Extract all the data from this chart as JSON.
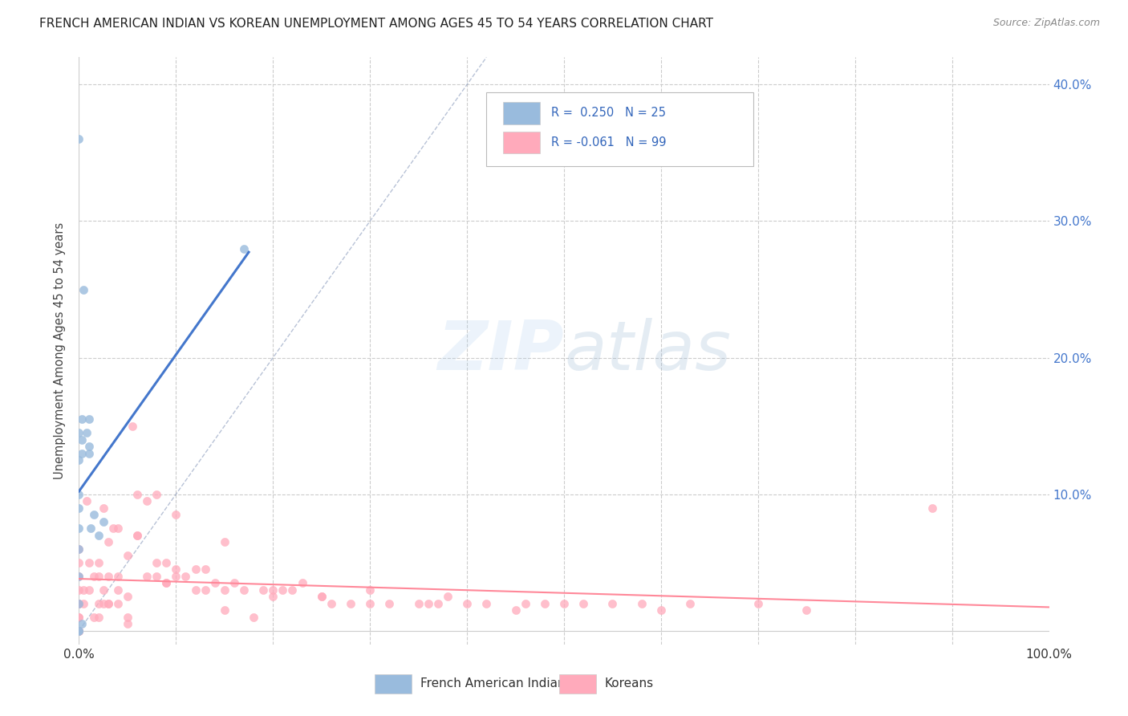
{
  "title": "FRENCH AMERICAN INDIAN VS KOREAN UNEMPLOYMENT AMONG AGES 45 TO 54 YEARS CORRELATION CHART",
  "source": "Source: ZipAtlas.com",
  "ylabel": "Unemployment Among Ages 45 to 54 years",
  "xlim": [
    0,
    1.0
  ],
  "ylim": [
    -0.01,
    0.42
  ],
  "yticklabels_right": [
    "",
    "10.0%",
    "20.0%",
    "30.0%",
    "40.0%"
  ],
  "ytick_positions": [
    0.0,
    0.1,
    0.2,
    0.3,
    0.4
  ],
  "legend_label1": "French American Indians",
  "legend_label2": "Koreans",
  "color_blue": "#99BBDD",
  "color_pink": "#FFAABB",
  "color_blue_line": "#4477CC",
  "color_pink_line": "#FF8899",
  "color_diag": "#8899BB",
  "watermark_color": "#BBDDEE",
  "french_x": [
    0.0,
    0.0,
    0.0,
    0.0,
    0.0,
    0.0,
    0.0,
    0.0,
    0.0,
    0.0,
    0.0,
    0.003,
    0.003,
    0.003,
    0.003,
    0.005,
    0.008,
    0.01,
    0.01,
    0.01,
    0.012,
    0.015,
    0.02,
    0.025,
    0.17
  ],
  "french_y": [
    0.0,
    0.0,
    0.02,
    0.04,
    0.06,
    0.075,
    0.09,
    0.1,
    0.125,
    0.145,
    0.36,
    0.005,
    0.13,
    0.14,
    0.155,
    0.25,
    0.145,
    0.13,
    0.135,
    0.155,
    0.075,
    0.085,
    0.07,
    0.08,
    0.28
  ],
  "korean_x": [
    0.0,
    0.0,
    0.0,
    0.0,
    0.0,
    0.0,
    0.0,
    0.0,
    0.0,
    0.0,
    0.0,
    0.0,
    0.0,
    0.0,
    0.005,
    0.005,
    0.008,
    0.01,
    0.01,
    0.015,
    0.015,
    0.02,
    0.02,
    0.02,
    0.02,
    0.025,
    0.025,
    0.025,
    0.03,
    0.03,
    0.03,
    0.03,
    0.035,
    0.04,
    0.04,
    0.04,
    0.04,
    0.05,
    0.05,
    0.05,
    0.05,
    0.055,
    0.06,
    0.06,
    0.06,
    0.07,
    0.07,
    0.08,
    0.08,
    0.08,
    0.09,
    0.09,
    0.09,
    0.1,
    0.1,
    0.1,
    0.11,
    0.12,
    0.12,
    0.13,
    0.13,
    0.14,
    0.15,
    0.15,
    0.15,
    0.16,
    0.17,
    0.18,
    0.19,
    0.2,
    0.2,
    0.21,
    0.22,
    0.23,
    0.25,
    0.25,
    0.26,
    0.28,
    0.3,
    0.3,
    0.32,
    0.35,
    0.36,
    0.37,
    0.38,
    0.4,
    0.42,
    0.45,
    0.46,
    0.48,
    0.5,
    0.52,
    0.55,
    0.58,
    0.6,
    0.63,
    0.7,
    0.75,
    0.88
  ],
  "korean_y": [
    0.0,
    0.0,
    0.0,
    0.0,
    0.0,
    0.0,
    0.01,
    0.01,
    0.02,
    0.02,
    0.03,
    0.04,
    0.05,
    0.06,
    0.02,
    0.03,
    0.095,
    0.03,
    0.05,
    0.01,
    0.04,
    0.01,
    0.02,
    0.04,
    0.05,
    0.02,
    0.03,
    0.09,
    0.02,
    0.02,
    0.04,
    0.065,
    0.075,
    0.02,
    0.03,
    0.04,
    0.075,
    0.005,
    0.01,
    0.025,
    0.055,
    0.15,
    0.07,
    0.07,
    0.1,
    0.04,
    0.095,
    0.04,
    0.05,
    0.1,
    0.035,
    0.035,
    0.05,
    0.04,
    0.045,
    0.085,
    0.04,
    0.03,
    0.045,
    0.03,
    0.045,
    0.035,
    0.015,
    0.03,
    0.065,
    0.035,
    0.03,
    0.01,
    0.03,
    0.025,
    0.03,
    0.03,
    0.03,
    0.035,
    0.025,
    0.025,
    0.02,
    0.02,
    0.02,
    0.03,
    0.02,
    0.02,
    0.02,
    0.02,
    0.025,
    0.02,
    0.02,
    0.015,
    0.02,
    0.02,
    0.02,
    0.02,
    0.02,
    0.02,
    0.015,
    0.02,
    0.02,
    0.015,
    0.09
  ],
  "blue_line_x": [
    0.0,
    0.17
  ],
  "blue_line_y": [
    0.07,
    0.27
  ],
  "pink_line_x": [
    0.0,
    1.0
  ],
  "pink_line_y": [
    0.048,
    0.04
  ]
}
